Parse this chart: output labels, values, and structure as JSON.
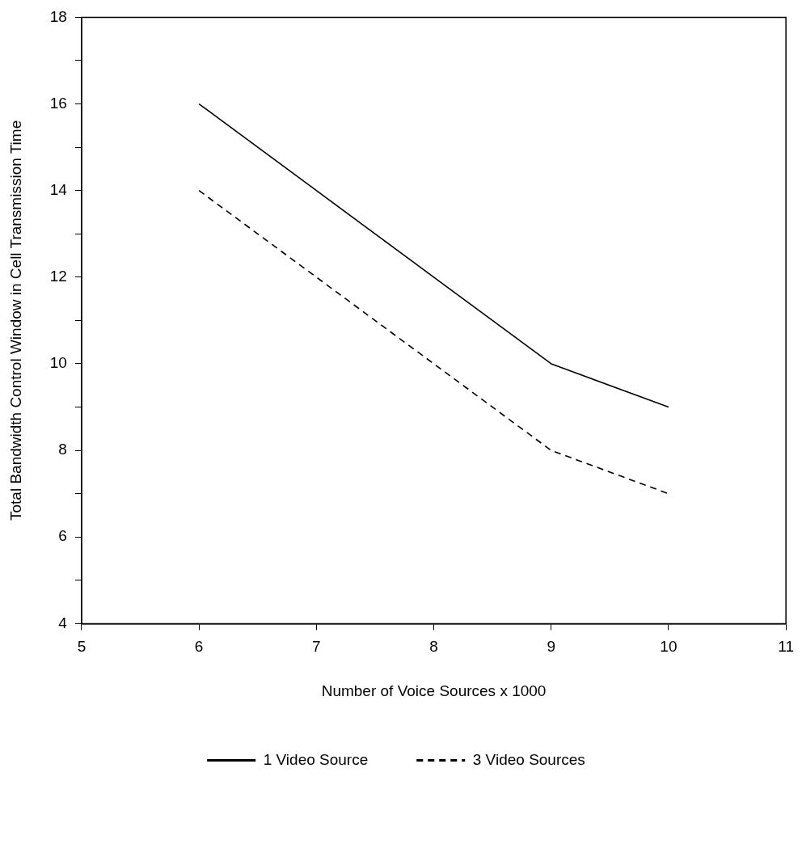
{
  "chart_data": {
    "type": "line",
    "xlabel": "Number of Voice Sources x 1000",
    "ylabel": "Total Bandwidth Control Window in Cell Transmission Time",
    "x": [
      6,
      7,
      8,
      9,
      10
    ],
    "series": [
      {
        "name": "1 Video Source",
        "color": "#000000",
        "line_style": "solid",
        "values": [
          16,
          14,
          12,
          10,
          9
        ]
      },
      {
        "name": "3 Video Sources",
        "color": "#000000",
        "line_style": "dashed",
        "values": [
          14,
          12,
          10,
          8,
          7
        ]
      }
    ],
    "xlim": [
      5,
      11
    ],
    "xticks": [
      5,
      6,
      7,
      8,
      9,
      10,
      11
    ],
    "ylim": [
      4,
      18
    ],
    "yticks": [
      4,
      {
        "value": 5,
        "label": null
      },
      6,
      {
        "value": 7,
        "label": null
      },
      8,
      {
        "value": 9,
        "label": null
      },
      10,
      {
        "value": 11,
        "label": null
      },
      12,
      {
        "value": 13,
        "label": null
      },
      14,
      {
        "value": 15,
        "label": null
      },
      16,
      {
        "value": 17,
        "label": null
      },
      18
    ],
    "grid": false,
    "legend": "bottom",
    "marker": "none"
  }
}
